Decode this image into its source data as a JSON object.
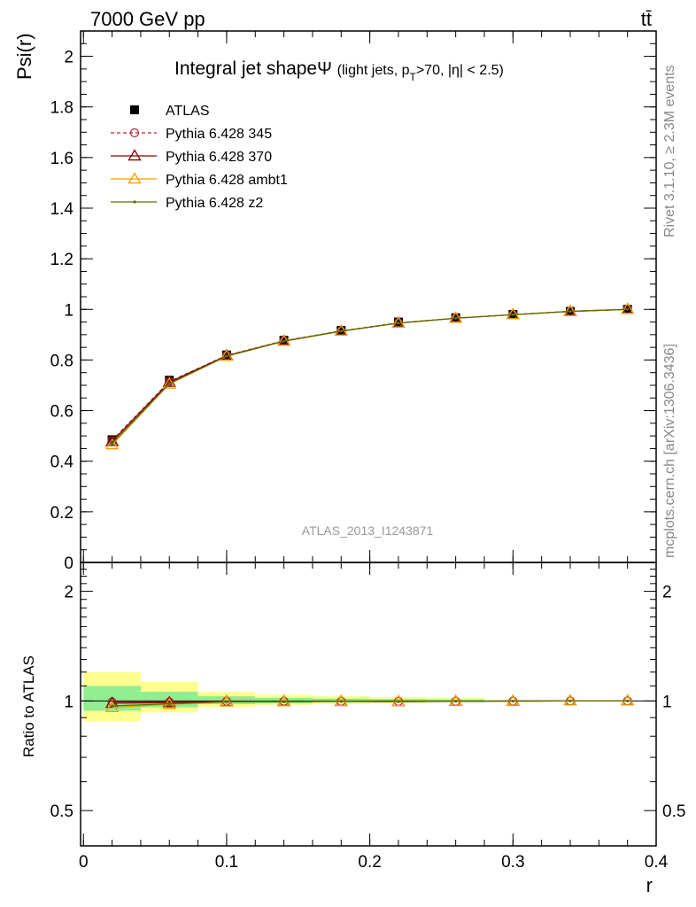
{
  "header": {
    "left": "7000 GeV pp",
    "right": "tt̄"
  },
  "side_labels": {
    "rivet": "Rivet 3.1.10, ≥ 2.3M events",
    "mcplots": "mcplots.cern.ch [arXiv:1306.3436]"
  },
  "watermark": "ATLAS_2013_I1243871",
  "chart_data": [
    {
      "type": "line",
      "title": "Integral jet shape",
      "title_symbol": "Ψ",
      "subtitle_pre": "(light jets, p",
      "subtitle_sub": "T",
      "subtitle_post": ">70, |η| < 2.5)",
      "ylabel": "Psi(r)",
      "xlabel": "r",
      "xlim": [
        -0.002,
        0.4
      ],
      "ylim": [
        0,
        2.1
      ],
      "yticks": [
        0,
        0.2,
        0.4,
        0.6,
        0.8,
        1,
        1.2,
        1.4,
        1.6,
        1.8,
        2
      ],
      "ytick_labels": [
        "0",
        "0.2",
        "0.4",
        "0.6",
        "0.8",
        "1",
        "1.2",
        "1.4",
        "1.6",
        "1.8",
        "2"
      ],
      "legend_position": "top-left",
      "x": [
        0.02,
        0.06,
        0.1,
        0.14,
        0.18,
        0.22,
        0.26,
        0.3,
        0.34,
        0.38
      ],
      "series": [
        {
          "name": "ATLAS",
          "color": "#000000",
          "marker": "square",
          "values": [
            0.485,
            0.72,
            0.82,
            0.878,
            0.917,
            0.95,
            0.967,
            0.98,
            0.992,
            1.0
          ]
        },
        {
          "name": "Pythia 6.428 345",
          "color": "#b0283c",
          "marker": "circle",
          "dash": true,
          "values": [
            0.482,
            0.715,
            0.818,
            0.876,
            0.915,
            0.947,
            0.965,
            0.979,
            0.992,
            1.0
          ]
        },
        {
          "name": "Pythia 6.428 370",
          "color": "#800000",
          "marker": "triangle",
          "values": [
            0.478,
            0.712,
            0.817,
            0.875,
            0.914,
            0.946,
            0.965,
            0.979,
            0.992,
            1.0
          ]
        },
        {
          "name": "Pythia 6.428 ambt1",
          "color": "#f0a000",
          "marker": "triangle",
          "values": [
            0.465,
            0.705,
            0.815,
            0.874,
            0.914,
            0.946,
            0.965,
            0.979,
            0.992,
            1.0
          ]
        },
        {
          "name": "Pythia 6.428 z2",
          "color": "#5a6e00",
          "marker": "dot",
          "values": [
            0.47,
            0.707,
            0.815,
            0.874,
            0.914,
            0.946,
            0.965,
            0.979,
            0.992,
            1.0
          ]
        }
      ]
    },
    {
      "type": "line",
      "ylabel": "Ratio to ATLAS",
      "xlabel": "r",
      "xlim": [
        -0.002,
        0.4
      ],
      "ylim": [
        0.4,
        2.4
      ],
      "ylog": true,
      "yticks": [
        0.5,
        1,
        2
      ],
      "ytick_labels": [
        "0.5",
        "1",
        "2"
      ],
      "xticks": [
        0,
        0.1,
        0.2,
        0.3,
        0.4
      ],
      "xtick_labels": [
        "0",
        "0.1",
        "0.2",
        "0.3",
        "0.4"
      ],
      "bins": [
        [
          0,
          0.04
        ],
        [
          0.04,
          0.08
        ],
        [
          0.08,
          0.12
        ],
        [
          0.12,
          0.16
        ],
        [
          0.16,
          0.2
        ],
        [
          0.2,
          0.24
        ],
        [
          0.24,
          0.28
        ],
        [
          0.28,
          0.32
        ],
        [
          0.32,
          0.36
        ],
        [
          0.36,
          0.4
        ]
      ],
      "band_inner": [
        [
          0.94,
          1.1
        ],
        [
          0.96,
          1.06
        ],
        [
          0.98,
          1.03
        ],
        [
          0.985,
          1.02
        ],
        [
          0.99,
          1.015
        ],
        [
          0.99,
          1.012
        ],
        [
          0.992,
          1.01
        ],
        [
          0.995,
          1.005
        ],
        [
          0.998,
          1.002
        ],
        [
          0.999,
          1.001
        ]
      ],
      "band_outer": [
        [
          0.88,
          1.2
        ],
        [
          0.93,
          1.13
        ],
        [
          0.96,
          1.06
        ],
        [
          0.975,
          1.04
        ],
        [
          0.98,
          1.03
        ],
        [
          0.985,
          1.025
        ],
        [
          0.99,
          1.018
        ],
        [
          0.995,
          1.005
        ],
        [
          0.998,
          1.002
        ],
        [
          0.999,
          1.001
        ]
      ],
      "band_colors": {
        "inner": "#90ee90",
        "outer": "#ffff90"
      },
      "x": [
        0.02,
        0.06,
        0.1,
        0.14,
        0.18,
        0.22,
        0.26,
        0.3,
        0.34,
        0.38
      ],
      "series": [
        {
          "name": "Pythia 6.428 345",
          "color": "#b0283c",
          "marker": "circle",
          "values": [
            0.994,
            0.993,
            0.998,
            0.998,
            0.998,
            0.997,
            0.998,
            0.999,
            1.0,
            1.0
          ]
        },
        {
          "name": "Pythia 6.428 370",
          "color": "#800000",
          "marker": "triangle",
          "values": [
            0.986,
            0.989,
            0.996,
            0.997,
            0.997,
            0.996,
            0.998,
            0.999,
            1.0,
            1.0
          ]
        },
        {
          "name": "Pythia 6.428 ambt1",
          "color": "#f0a000",
          "marker": "triangle",
          "values": [
            0.959,
            0.979,
            0.994,
            0.995,
            0.997,
            0.996,
            0.998,
            0.999,
            1.0,
            1.0
          ]
        },
        {
          "name": "Pythia 6.428 z2",
          "color": "#5a6e00",
          "marker": "dot",
          "values": [
            0.969,
            0.982,
            0.994,
            0.995,
            0.997,
            0.996,
            0.998,
            0.999,
            1.0,
            1.0
          ]
        }
      ]
    }
  ]
}
